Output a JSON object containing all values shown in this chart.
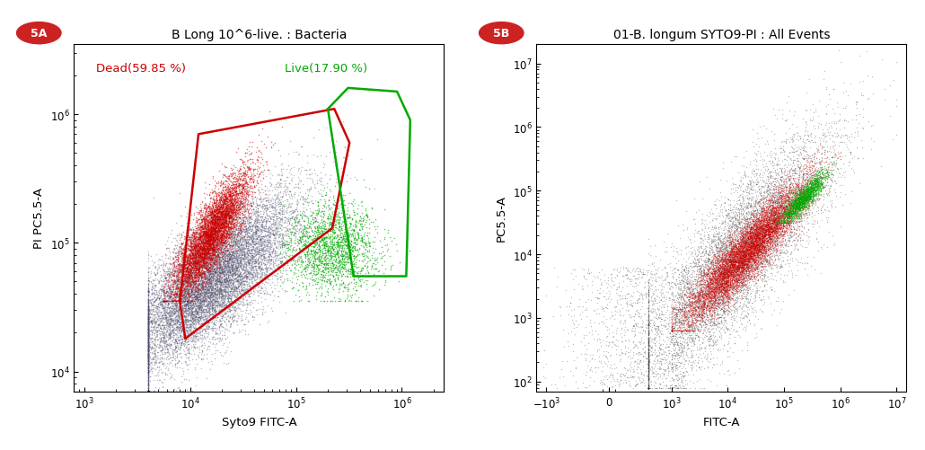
{
  "panel_A": {
    "title": "B Long 10^6-live. : Bacteria",
    "xlabel": "Syto9 FITC-A",
    "ylabel": "PI PC5.5-A",
    "dead_label": "Dead(59.85 %)",
    "live_label": "Live(17.90 %)",
    "dead_color": "#cc0000",
    "live_color": "#00aa00",
    "blue_color": "#4a4a6a",
    "badge_label": "5A",
    "dead_gate_x": [
      8000,
      9000,
      220000,
      320000,
      230000,
      12000,
      8000
    ],
    "dead_gate_y": [
      35000,
      18000,
      130000,
      600000,
      1100000,
      700000,
      35000
    ],
    "live_gate_x": [
      200000,
      310000,
      900000,
      1200000,
      1100000,
      350000,
      200000
    ],
    "live_gate_y": [
      1100000,
      1600000,
      1500000,
      900000,
      55000,
      55000,
      1100000
    ]
  },
  "panel_B": {
    "title": "01-B. longum SYTO9-PI : All Events",
    "xlabel": "FITC-A",
    "ylabel": "PC5.5-A",
    "badge_label": "5B",
    "red_color": "#cc0000",
    "green_color": "#00aa00",
    "black_color": "#333333"
  },
  "background_color": "#ffffff",
  "badge_bg": "#cc2222",
  "badge_text_color": "#ffffff"
}
